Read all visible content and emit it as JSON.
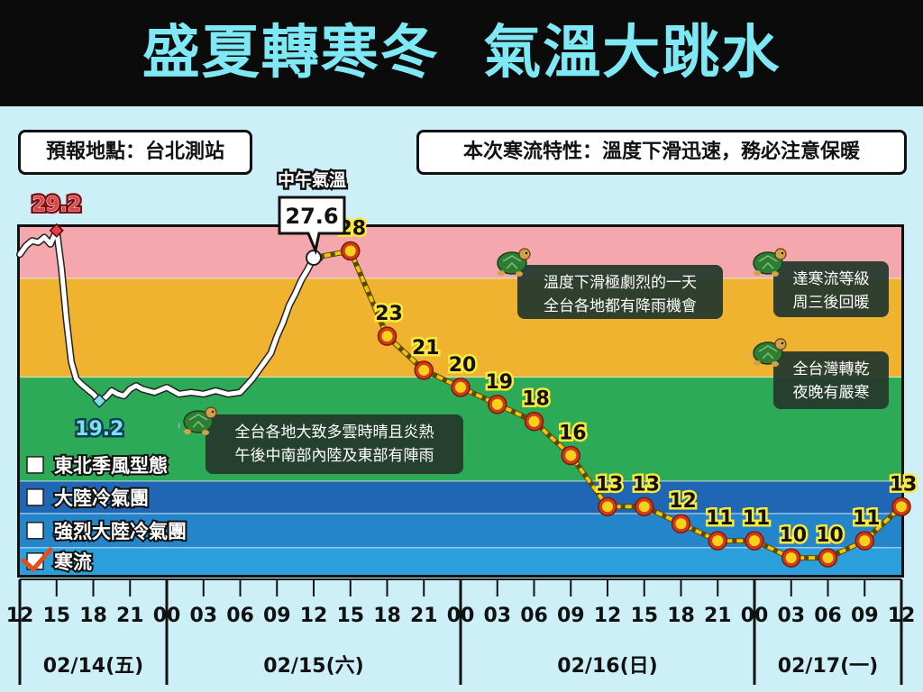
{
  "title": "盛夏轉寒冬  氣溫大跳水",
  "location_label": "預報地點：台北測站",
  "feature_label": "本次寒流特性：溫度下滑迅速，務必注意保暖",
  "colors": {
    "title_bg": "#0b0b0b",
    "title_text": "#7ee8f4",
    "page_bg": "#cdf0f8",
    "band_pink": "#f4a7ad",
    "band_orange": "#f0b330",
    "band_green": "#2daa58",
    "band_navy": "#1f67b4",
    "band_blue": "#2585ca",
    "band_light_blue": "#2a9fdc",
    "observed_line": "#ffffff",
    "forecast_line": "#f1c40f",
    "forecast_marker_fill": "#f6d21b",
    "forecast_marker_ring": "#d33a1c",
    "max_marker": "#e0424a",
    "min_marker": "#7fe0d8",
    "annotation_bg": "#263a2e"
  },
  "chart_data": {
    "type": "line",
    "title": "",
    "xlabel": "",
    "ylabel": "",
    "ylim": [
      9.0,
      29.4
    ],
    "grid": false,
    "bands": [
      {
        "label": "",
        "from": 26.4,
        "to": 29.4,
        "color_key": "band_pink"
      },
      {
        "label": "",
        "from": 20.6,
        "to": 26.4,
        "color_key": "band_orange"
      },
      {
        "label": "東北季風型態",
        "from": 14.5,
        "to": 20.6,
        "color_key": "band_green",
        "checked": false
      },
      {
        "label": "大陸冷氣團",
        "from": 12.6,
        "to": 14.5,
        "color_key": "band_navy",
        "checked": false
      },
      {
        "label": "強烈大陸冷氣團",
        "from": 10.6,
        "to": 12.6,
        "color_key": "band_blue",
        "checked": false
      },
      {
        "label": "寒流",
        "from": 9.0,
        "to": 10.6,
        "color_key": "band_light_blue",
        "checked": true
      }
    ],
    "x_ticks": [
      {
        "t": 0,
        "label": "12"
      },
      {
        "t": 3,
        "label": "15"
      },
      {
        "t": 6,
        "label": "18"
      },
      {
        "t": 9,
        "label": "21"
      },
      {
        "t": 12,
        "label": "00"
      },
      {
        "t": 15,
        "label": "03"
      },
      {
        "t": 18,
        "label": "06"
      },
      {
        "t": 21,
        "label": "09"
      },
      {
        "t": 24,
        "label": "12"
      },
      {
        "t": 27,
        "label": "15"
      },
      {
        "t": 30,
        "label": "18"
      },
      {
        "t": 33,
        "label": "21"
      },
      {
        "t": 36,
        "label": "00"
      },
      {
        "t": 39,
        "label": "03"
      },
      {
        "t": 42,
        "label": "06"
      },
      {
        "t": 45,
        "label": "09"
      },
      {
        "t": 48,
        "label": "12"
      },
      {
        "t": 51,
        "label": "15"
      },
      {
        "t": 54,
        "label": "18"
      },
      {
        "t": 57,
        "label": "21"
      },
      {
        "t": 60,
        "label": "00"
      },
      {
        "t": 63,
        "label": "03"
      },
      {
        "t": 66,
        "label": "06"
      },
      {
        "t": 69,
        "label": "09"
      },
      {
        "t": 72,
        "label": "12"
      }
    ],
    "day_labels": [
      {
        "from": 0,
        "to": 12,
        "label": "02/14(五)"
      },
      {
        "from": 12,
        "to": 36,
        "label": "02/15(六)"
      },
      {
        "from": 36,
        "to": 60,
        "label": "02/16(日)"
      },
      {
        "from": 60,
        "to": 72,
        "label": "02/17(一)"
      }
    ],
    "observed_series": {
      "name": "",
      "x": [
        0,
        0.5,
        1,
        1.5,
        2,
        2.5,
        3,
        3.4,
        3.8,
        4.2,
        4.6,
        5,
        5.5,
        6,
        6.5,
        7,
        7.5,
        8,
        8.5,
        9,
        9.5,
        10,
        11,
        12,
        13,
        14,
        15,
        16,
        17,
        18,
        19,
        20,
        20.5,
        21,
        21.5,
        22,
        22.5,
        23,
        23.5,
        24,
        24.5
      ],
      "y": [
        27.8,
        28.3,
        28.6,
        28.5,
        28.8,
        28.4,
        29.2,
        27.0,
        24.0,
        21.5,
        20.5,
        20.2,
        19.9,
        19.6,
        19.2,
        19.4,
        19.8,
        19.6,
        19.5,
        19.9,
        20.1,
        19.9,
        19.7,
        20.0,
        19.6,
        19.7,
        19.6,
        19.8,
        19.6,
        19.7,
        20.5,
        21.5,
        22.0,
        23.0,
        23.8,
        24.8,
        25.5,
        26.3,
        26.9,
        27.6,
        27.6
      ]
    },
    "forecast_series": {
      "name": "",
      "x": [
        24,
        27,
        30,
        33,
        36,
        39,
        42,
        45,
        48,
        51,
        54,
        57,
        60,
        63,
        66,
        69,
        72
      ],
      "y": [
        27.6,
        28,
        23,
        21,
        20,
        19,
        18,
        16,
        13,
        13,
        12,
        11,
        11,
        10,
        10,
        11,
        13
      ],
      "labels": [
        "",
        "28",
        "23",
        "21",
        "20",
        "19",
        "18",
        "16",
        "13",
        "13",
        "12",
        "11",
        "11",
        "10",
        "10",
        "11",
        "13"
      ]
    },
    "max_point": {
      "x": 3,
      "y": 29.2,
      "label": "29.2"
    },
    "min_point": {
      "x": 6.5,
      "y": 19.2,
      "label": "19.2"
    },
    "callout": {
      "x": 24,
      "y": 27.6,
      "caption": "中午氣溫",
      "value": "27.6"
    }
  },
  "annotations": [
    {
      "id": "note-hot",
      "lines": [
        "全台各地大致多雲時晴且炎熱",
        "午後中南部內陸及東部有陣雨"
      ],
      "icon": "turtle-icon"
    },
    {
      "id": "note-drop",
      "lines": [
        "溫度下滑極劇烈的一天",
        "全台各地都有降雨機會"
      ],
      "icon": "turtle-icon"
    },
    {
      "id": "note-cold",
      "lines": [
        "達寒流等級",
        "周三後回暖"
      ],
      "icon": "turtle-icon"
    },
    {
      "id": "note-dry",
      "lines": [
        "全台灣轉乾",
        "夜晚有嚴寒"
      ],
      "icon": "turtle-icon"
    }
  ]
}
